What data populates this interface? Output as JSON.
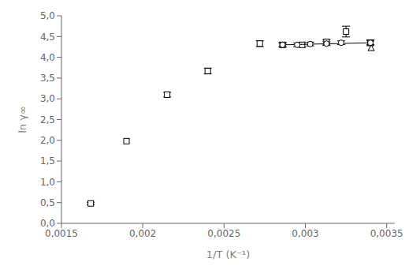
{
  "chart_data": {
    "type": "scatter",
    "xlabel": "1/T (K⁻¹)",
    "ylabel": "ln γ∞",
    "xlim": [
      0.0015,
      0.00355
    ],
    "ylim": [
      0.0,
      5.0
    ],
    "xticks": [
      {
        "value": 0.0015,
        "label": "0,0015"
      },
      {
        "value": 0.002,
        "label": "0,002"
      },
      {
        "value": 0.0025,
        "label": "0,0025"
      },
      {
        "value": 0.003,
        "label": "0,003"
      },
      {
        "value": 0.0035,
        "label": "0,0035"
      }
    ],
    "yticks": [
      {
        "value": 0.0,
        "label": "0,0"
      },
      {
        "value": 0.5,
        "label": "0,5"
      },
      {
        "value": 1.0,
        "label": "1,0"
      },
      {
        "value": 1.5,
        "label": "1,5"
      },
      {
        "value": 2.0,
        "label": "2,0"
      },
      {
        "value": 2.5,
        "label": "2,5"
      },
      {
        "value": 3.0,
        "label": "3,0"
      },
      {
        "value": 3.5,
        "label": "3,5"
      },
      {
        "value": 4.0,
        "label": "4,0"
      },
      {
        "value": 4.5,
        "label": "4,5"
      },
      {
        "value": 5.0,
        "label": "5,0"
      }
    ],
    "grid": false,
    "series": [
      {
        "type": "scatter",
        "marker": "square",
        "color": "#000000",
        "x": [
          0.00168,
          0.0019,
          0.00215,
          0.0024,
          0.00272,
          0.00286,
          0.00298,
          0.00313,
          0.00325,
          0.0034
        ],
        "values": [
          0.48,
          1.98,
          3.1,
          3.67,
          4.33,
          4.3,
          4.3,
          4.37,
          4.62,
          4.35
        ],
        "yerr": [
          0.03,
          0.0,
          0.055,
          0.07,
          0.07,
          0.055,
          0.055,
          0.055,
          0.13,
          0.07
        ]
      },
      {
        "type": "line",
        "line_style": "solid",
        "color": "#000000",
        "x": [
          0.00286,
          0.003405
        ],
        "values": [
          4.3,
          4.35
        ]
      },
      {
        "type": "scatter",
        "marker": "circle",
        "color": "#000000",
        "x": [
          0.00286,
          0.00295,
          0.00303,
          0.00313,
          0.00322,
          0.0034
        ],
        "values": [
          4.3,
          4.3,
          4.32,
          4.33,
          4.35,
          4.35
        ],
        "yerr": [
          0.045,
          0.045,
          0.045,
          0.045,
          0.045,
          0.045
        ]
      },
      {
        "type": "scatter",
        "marker": "triangle",
        "color": "#000000",
        "x": [
          0.003405
        ],
        "values": [
          4.22
        ]
      }
    ]
  }
}
